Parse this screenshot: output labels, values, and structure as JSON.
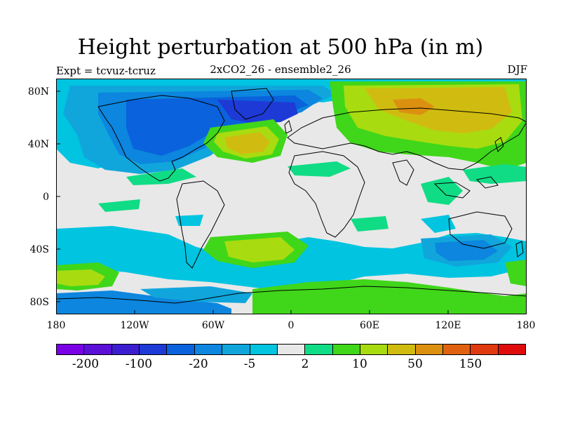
{
  "title": "Height perturbation at 500 hPa (in m)",
  "subtitle_left": "Expt = tcvuz-tcruz",
  "subtitle_center": "2xCO2_26 - ensemble2_26",
  "subtitle_right": "DJF",
  "lat_labels": [
    "80N",
    "40N",
    "0",
    "40S",
    "80S"
  ],
  "lon_labels": [
    "180",
    "120W",
    "60W",
    "0",
    "60E",
    "120E",
    "180"
  ],
  "colorbar": {
    "colors": [
      "#7a00e6",
      "#5a10d6",
      "#3c1ed0",
      "#1e3ad6",
      "#0a62dc",
      "#0c86de",
      "#10a6dc",
      "#00c4e0",
      "#e8e8e8",
      "#10dc86",
      "#40d61a",
      "#a8dc10",
      "#d0bc10",
      "#dc9010",
      "#e06210",
      "#e03a10",
      "#e00c0c"
    ],
    "labels": [
      "-200",
      "-100",
      "-20",
      "-5",
      "2",
      "10",
      "50",
      "150"
    ]
  },
  "colors": {
    "background_field": "#e8e8e8",
    "coastline": "#000000"
  }
}
